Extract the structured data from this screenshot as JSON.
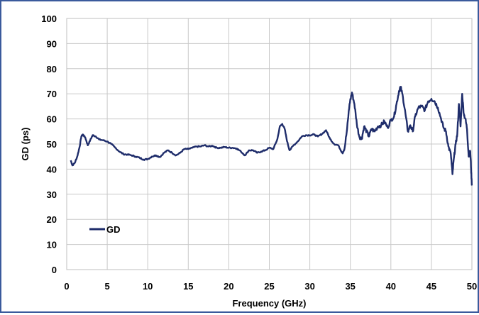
{
  "chart_data": {
    "type": "line",
    "xlabel": "Frequency (GHz)",
    "ylabel": "GD (ps)",
    "xlim": [
      0,
      50
    ],
    "ylim": [
      0,
      100
    ],
    "x_ticks": [
      0,
      5,
      10,
      15,
      20,
      25,
      30,
      35,
      40,
      45,
      50
    ],
    "y_ticks": [
      0,
      10,
      20,
      30,
      40,
      50,
      60,
      70,
      80,
      90,
      100
    ],
    "grid": true,
    "legend_position": "lower-left",
    "series": [
      {
        "name": "GD",
        "color": "#1f2d6b",
        "points": [
          [
            0.5,
            43.5
          ],
          [
            0.7,
            41.5
          ],
          [
            1.0,
            42.5
          ],
          [
            1.3,
            45
          ],
          [
            1.6,
            49
          ],
          [
            1.8,
            53
          ],
          [
            2.0,
            53.8
          ],
          [
            2.3,
            52.5
          ],
          [
            2.6,
            49.5
          ],
          [
            2.9,
            51.5
          ],
          [
            3.2,
            53.5
          ],
          [
            3.6,
            53
          ],
          [
            4.0,
            51.8
          ],
          [
            4.5,
            51.5
          ],
          [
            5.0,
            51
          ],
          [
            5.5,
            50
          ],
          [
            6.0,
            48.5
          ],
          [
            6.5,
            47
          ],
          [
            7.0,
            46
          ],
          [
            7.5,
            45.8
          ],
          [
            8.0,
            45.5
          ],
          [
            8.5,
            45
          ],
          [
            9.0,
            44.5
          ],
          [
            9.5,
            43.8
          ],
          [
            10.0,
            44
          ],
          [
            10.5,
            45
          ],
          [
            11.0,
            45.5
          ],
          [
            11.5,
            44.8
          ],
          [
            12.0,
            46.5
          ],
          [
            12.5,
            47.5
          ],
          [
            13.0,
            46.5
          ],
          [
            13.5,
            45.5
          ],
          [
            14.0,
            46.5
          ],
          [
            14.5,
            48
          ],
          [
            15.0,
            48
          ],
          [
            15.5,
            48.5
          ],
          [
            16.0,
            49
          ],
          [
            16.5,
            49
          ],
          [
            17.0,
            49.5
          ],
          [
            17.5,
            49
          ],
          [
            18.0,
            49.3
          ],
          [
            18.5,
            48.5
          ],
          [
            19.0,
            48.5
          ],
          [
            19.5,
            48.8
          ],
          [
            20.0,
            48.5
          ],
          [
            20.5,
            48.5
          ],
          [
            21.0,
            48.2
          ],
          [
            21.5,
            47
          ],
          [
            22.0,
            45.5
          ],
          [
            22.5,
            47.5
          ],
          [
            23.0,
            47.5
          ],
          [
            23.5,
            46.5
          ],
          [
            24.0,
            47
          ],
          [
            24.5,
            47.5
          ],
          [
            25.0,
            48.5
          ],
          [
            25.5,
            48
          ],
          [
            26.0,
            52
          ],
          [
            26.3,
            57
          ],
          [
            26.6,
            58
          ],
          [
            26.9,
            56
          ],
          [
            27.2,
            51
          ],
          [
            27.5,
            47.5
          ],
          [
            28.0,
            49.5
          ],
          [
            28.5,
            51
          ],
          [
            29.0,
            53
          ],
          [
            29.5,
            53.5
          ],
          [
            30.0,
            53.5
          ],
          [
            30.5,
            53.8
          ],
          [
            31.0,
            53
          ],
          [
            31.5,
            54
          ],
          [
            32.0,
            55.5
          ],
          [
            32.5,
            52
          ],
          [
            33.0,
            50
          ],
          [
            33.5,
            49.5
          ],
          [
            34.0,
            46.5
          ],
          [
            34.3,
            48.5
          ],
          [
            34.6,
            56
          ],
          [
            34.9,
            66
          ],
          [
            35.2,
            70.5
          ],
          [
            35.5,
            66
          ],
          [
            35.8,
            58
          ],
          [
            36.1,
            53
          ],
          [
            36.4,
            52
          ],
          [
            36.7,
            57
          ],
          [
            37.0,
            55
          ],
          [
            37.3,
            53
          ],
          [
            37.6,
            56
          ],
          [
            38.0,
            55
          ],
          [
            38.4,
            57
          ],
          [
            38.8,
            57.5
          ],
          [
            39.2,
            59
          ],
          [
            39.6,
            56.5
          ],
          [
            40.0,
            59.5
          ],
          [
            40.4,
            61
          ],
          [
            40.7,
            66
          ],
          [
            41.0,
            71
          ],
          [
            41.2,
            72.8
          ],
          [
            41.5,
            68.5
          ],
          [
            41.8,
            62
          ],
          [
            42.1,
            55
          ],
          [
            42.4,
            57.5
          ],
          [
            42.7,
            55
          ],
          [
            43.0,
            61
          ],
          [
            43.4,
            64.5
          ],
          [
            43.8,
            65
          ],
          [
            44.2,
            63.5
          ],
          [
            44.6,
            67
          ],
          [
            45.0,
            68
          ],
          [
            45.4,
            67
          ],
          [
            45.8,
            64.5
          ],
          [
            46.2,
            60
          ],
          [
            46.5,
            56.5
          ],
          [
            46.8,
            55
          ],
          [
            47.1,
            49
          ],
          [
            47.4,
            46
          ],
          [
            47.6,
            38
          ],
          [
            47.8,
            45
          ],
          [
            48.0,
            50
          ],
          [
            48.2,
            54
          ],
          [
            48.4,
            66
          ],
          [
            48.6,
            57
          ],
          [
            48.8,
            70
          ],
          [
            49.0,
            62
          ],
          [
            49.2,
            60
          ],
          [
            49.4,
            56
          ],
          [
            49.6,
            45
          ],
          [
            49.8,
            47
          ],
          [
            49.9,
            40
          ],
          [
            50.0,
            33.5
          ]
        ]
      }
    ]
  }
}
